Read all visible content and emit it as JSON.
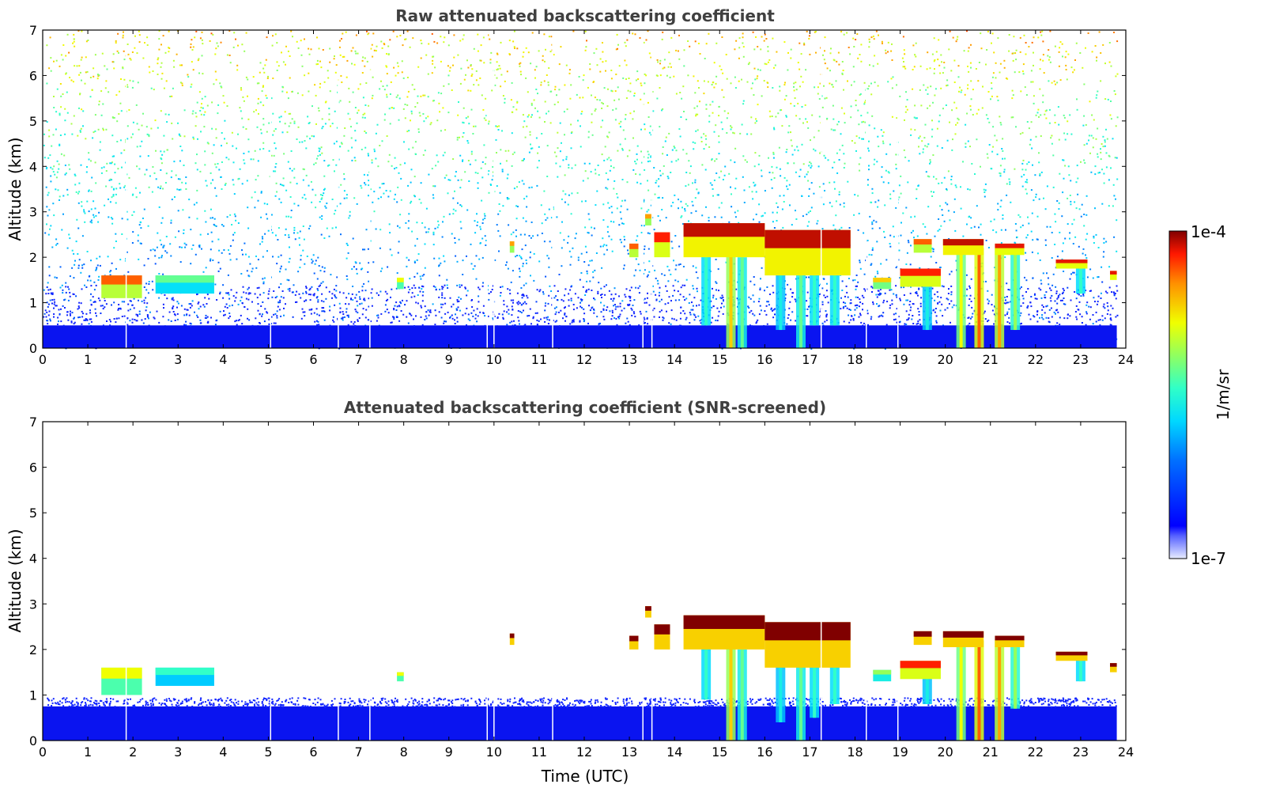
{
  "figure": {
    "colorbar": {
      "max_label": "1e-4",
      "min_label": "1e-7",
      "units_label": "1/m/sr",
      "scale": "log",
      "colormap": "jet"
    }
  },
  "chart_data": [
    {
      "type": "heatmap",
      "title": "Raw attenuated backscattering coefficient",
      "xlabel": "",
      "ylabel": "Altitude (km)",
      "xlim": [
        0,
        24
      ],
      "ylim": [
        0,
        7
      ],
      "x_ticks": [
        0,
        1,
        2,
        3,
        4,
        5,
        6,
        7,
        8,
        9,
        10,
        11,
        12,
        13,
        14,
        15,
        16,
        17,
        18,
        19,
        20,
        21,
        22,
        23,
        24
      ],
      "y_ticks": [
        0,
        1,
        2,
        3,
        4,
        5,
        6,
        7
      ],
      "data_end_time": 23.8,
      "noise_present": true,
      "boundary_layer_top_km": 0.5,
      "data_gaps_time": [
        1.85,
        5.05,
        6.55,
        7.25,
        9.85,
        10.0,
        11.3,
        13.3,
        13.5,
        17.25,
        18.25,
        18.95
      ],
      "cloud_layers": [
        {
          "t_start": 1.3,
          "t_end": 2.2,
          "base_km": 1.1,
          "top_km": 1.6,
          "level": 0.85
        },
        {
          "t_start": 2.5,
          "t_end": 3.8,
          "base_km": 1.2,
          "top_km": 1.6,
          "level": 0.55
        },
        {
          "t_start": 7.85,
          "t_end": 8.0,
          "base_km": 1.3,
          "top_km": 1.55,
          "level": 0.7
        },
        {
          "t_start": 10.35,
          "t_end": 10.45,
          "base_km": 2.1,
          "top_km": 2.35,
          "level": 0.8
        },
        {
          "t_start": 13.0,
          "t_end": 13.2,
          "base_km": 2.0,
          "top_km": 2.3,
          "level": 0.85
        },
        {
          "t_start": 13.35,
          "t_end": 13.5,
          "base_km": 2.7,
          "top_km": 2.95,
          "level": 0.8
        },
        {
          "t_start": 13.55,
          "t_end": 13.9,
          "base_km": 2.0,
          "top_km": 2.55,
          "level": 0.9
        },
        {
          "t_start": 14.2,
          "t_end": 16.0,
          "base_km": 2.0,
          "top_km": 2.75,
          "level": 0.95
        },
        {
          "t_start": 16.0,
          "t_end": 17.9,
          "base_km": 1.6,
          "top_km": 2.6,
          "level": 0.95
        },
        {
          "t_start": 18.4,
          "t_end": 18.8,
          "base_km": 1.3,
          "top_km": 1.55,
          "level": 0.75
        },
        {
          "t_start": 19.0,
          "t_end": 19.9,
          "base_km": 1.35,
          "top_km": 1.75,
          "level": 0.9
        },
        {
          "t_start": 19.3,
          "t_end": 19.7,
          "base_km": 2.1,
          "top_km": 2.4,
          "level": 0.85
        },
        {
          "t_start": 19.95,
          "t_end": 20.85,
          "base_km": 2.05,
          "top_km": 2.4,
          "level": 0.95
        },
        {
          "t_start": 21.1,
          "t_end": 21.75,
          "base_km": 2.05,
          "top_km": 2.3,
          "level": 0.92
        },
        {
          "t_start": 22.45,
          "t_end": 23.15,
          "base_km": 1.75,
          "top_km": 1.95,
          "level": 0.92
        },
        {
          "t_start": 23.65,
          "t_end": 23.8,
          "base_km": 1.5,
          "top_km": 1.7,
          "level": 0.92
        }
      ],
      "fallstreaks": [
        {
          "t": 14.7,
          "top_km": 2.2,
          "bottom_km": 0.5,
          "level": 0.5
        },
        {
          "t": 15.25,
          "top_km": 2.2,
          "bottom_km": 0.0,
          "level": 0.75
        },
        {
          "t": 15.5,
          "top_km": 2.0,
          "bottom_km": 0.0,
          "level": 0.55
        },
        {
          "t": 16.35,
          "top_km": 2.1,
          "bottom_km": 0.4,
          "level": 0.45
        },
        {
          "t": 16.8,
          "top_km": 2.2,
          "bottom_km": 0.0,
          "level": 0.55
        },
        {
          "t": 17.1,
          "top_km": 2.1,
          "bottom_km": 0.5,
          "level": 0.5
        },
        {
          "t": 17.55,
          "top_km": 1.9,
          "bottom_km": 0.5,
          "level": 0.5
        },
        {
          "t": 19.6,
          "top_km": 1.5,
          "bottom_km": 0.4,
          "level": 0.45
        },
        {
          "t": 20.35,
          "top_km": 2.2,
          "bottom_km": 0.0,
          "level": 0.7
        },
        {
          "t": 20.75,
          "top_km": 2.2,
          "bottom_km": 0.0,
          "level": 0.85
        },
        {
          "t": 21.2,
          "top_km": 2.2,
          "bottom_km": 0.0,
          "level": 0.8
        },
        {
          "t": 21.55,
          "top_km": 2.2,
          "bottom_km": 0.4,
          "level": 0.6
        },
        {
          "t": 23.0,
          "top_km": 1.8,
          "bottom_km": 1.2,
          "level": 0.5
        }
      ]
    },
    {
      "type": "heatmap",
      "title": "Attenuated backscattering coefficient (SNR-screened)",
      "xlabel": "Time (UTC)",
      "ylabel": "Altitude (km)",
      "xlim": [
        0,
        24
      ],
      "ylim": [
        0,
        7
      ],
      "x_ticks": [
        0,
        1,
        2,
        3,
        4,
        5,
        6,
        7,
        8,
        9,
        10,
        11,
        12,
        13,
        14,
        15,
        16,
        17,
        18,
        19,
        20,
        21,
        22,
        23,
        24
      ],
      "y_ticks": [
        0,
        1,
        2,
        3,
        4,
        5,
        6,
        7
      ],
      "data_end_time": 23.8,
      "noise_present": false,
      "boundary_layer_top_km": 0.75,
      "data_gaps_time": [
        1.85,
        5.05,
        6.55,
        7.25,
        9.85,
        10.0,
        11.3,
        13.3,
        13.5,
        17.25,
        18.25,
        18.95
      ],
      "cloud_layers": [
        {
          "t_start": 1.3,
          "t_end": 2.2,
          "base_km": 1.0,
          "top_km": 1.6,
          "level": 0.7
        },
        {
          "t_start": 2.5,
          "t_end": 3.8,
          "base_km": 1.2,
          "top_km": 1.6,
          "level": 0.5
        },
        {
          "t_start": 7.85,
          "t_end": 8.0,
          "base_km": 1.3,
          "top_km": 1.5,
          "level": 0.7
        },
        {
          "t_start": 10.35,
          "t_end": 10.45,
          "base_km": 2.1,
          "top_km": 2.35,
          "level": 1.0
        },
        {
          "t_start": 13.0,
          "t_end": 13.2,
          "base_km": 2.0,
          "top_km": 2.3,
          "level": 1.0
        },
        {
          "t_start": 13.35,
          "t_end": 13.5,
          "base_km": 2.7,
          "top_km": 2.95,
          "level": 1.0
        },
        {
          "t_start": 13.55,
          "t_end": 13.9,
          "base_km": 2.0,
          "top_km": 2.55,
          "level": 1.0
        },
        {
          "t_start": 14.2,
          "t_end": 16.0,
          "base_km": 2.0,
          "top_km": 2.75,
          "level": 1.0
        },
        {
          "t_start": 16.0,
          "t_end": 17.9,
          "base_km": 1.6,
          "top_km": 2.6,
          "level": 1.0
        },
        {
          "t_start": 18.4,
          "t_end": 18.8,
          "base_km": 1.3,
          "top_km": 1.55,
          "level": 0.6
        },
        {
          "t_start": 19.0,
          "t_end": 19.9,
          "base_km": 1.35,
          "top_km": 1.75,
          "level": 0.9
        },
        {
          "t_start": 19.3,
          "t_end": 19.7,
          "base_km": 2.1,
          "top_km": 2.4,
          "level": 1.0
        },
        {
          "t_start": 19.95,
          "t_end": 20.85,
          "base_km": 2.05,
          "top_km": 2.4,
          "level": 1.0
        },
        {
          "t_start": 21.1,
          "t_end": 21.75,
          "base_km": 2.05,
          "top_km": 2.3,
          "level": 1.0
        },
        {
          "t_start": 22.45,
          "t_end": 23.15,
          "base_km": 1.75,
          "top_km": 1.95,
          "level": 1.0
        },
        {
          "t_start": 23.65,
          "t_end": 23.8,
          "base_km": 1.5,
          "top_km": 1.7,
          "level": 1.0
        }
      ],
      "fallstreaks": [
        {
          "t": 14.7,
          "top_km": 2.2,
          "bottom_km": 0.9,
          "level": 0.5
        },
        {
          "t": 15.25,
          "top_km": 2.2,
          "bottom_km": 0.0,
          "level": 0.75
        },
        {
          "t": 15.5,
          "top_km": 2.0,
          "bottom_km": 0.0,
          "level": 0.55
        },
        {
          "t": 16.35,
          "top_km": 2.1,
          "bottom_km": 0.4,
          "level": 0.45
        },
        {
          "t": 16.8,
          "top_km": 2.2,
          "bottom_km": 0.0,
          "level": 0.55
        },
        {
          "t": 17.1,
          "top_km": 2.1,
          "bottom_km": 0.5,
          "level": 0.5
        },
        {
          "t": 17.55,
          "top_km": 1.9,
          "bottom_km": 0.8,
          "level": 0.5
        },
        {
          "t": 19.6,
          "top_km": 1.5,
          "bottom_km": 0.8,
          "level": 0.45
        },
        {
          "t": 20.35,
          "top_km": 2.2,
          "bottom_km": 0.0,
          "level": 0.7
        },
        {
          "t": 20.75,
          "top_km": 2.2,
          "bottom_km": 0.0,
          "level": 0.85
        },
        {
          "t": 21.2,
          "top_km": 2.2,
          "bottom_km": 0.0,
          "level": 0.8
        },
        {
          "t": 21.55,
          "top_km": 2.2,
          "bottom_km": 0.7,
          "level": 0.6
        },
        {
          "t": 23.0,
          "top_km": 1.8,
          "bottom_km": 1.3,
          "level": 0.5
        }
      ]
    }
  ]
}
